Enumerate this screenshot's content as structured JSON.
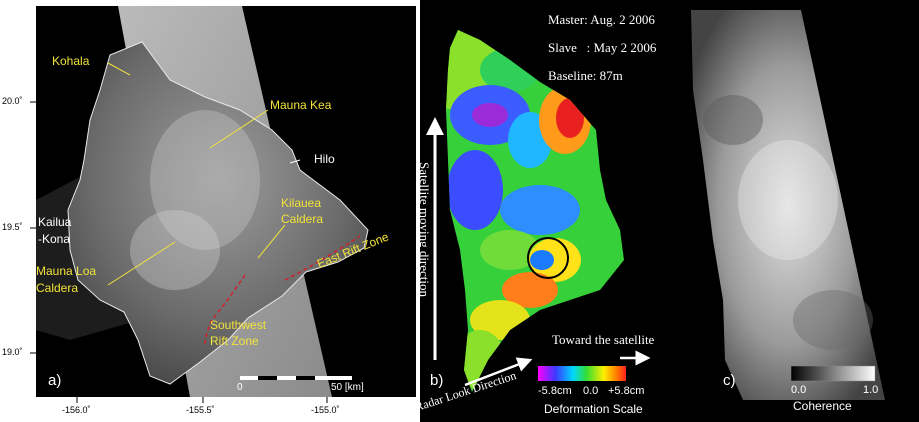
{
  "panel_a": {
    "panel_label": "a)",
    "lat_ticks": [
      "20.0˚",
      "19.5˚",
      "19.0˚"
    ],
    "lon_ticks": [
      "-156.0˚",
      "-155.5˚",
      "-155.0˚"
    ],
    "labels": {
      "kohala": "Kohala",
      "mauna_kea": "Mauna Kea",
      "hilo": "Hilo",
      "kailua": "Kailua",
      "kona": "-Kona",
      "kilauea_1": "Kilauea",
      "kilauea_2": "Caldera",
      "mauna_loa_1": "Mauna Loa",
      "mauna_loa_2": "Caldera",
      "east_rift": "East Rift Zone",
      "sw_rift_1": "Southwest",
      "sw_rift_2": "Rift Zone"
    },
    "scale_bar": {
      "min_label": "0",
      "max_label": "50 [km]"
    }
  },
  "panel_b": {
    "panel_label": "b)",
    "master": "Master: Aug. 2 2006",
    "slave": "Slave   : May 2 2006",
    "baseline": "Baseline: 87m",
    "satellite_direction": "Satellite  moving direction",
    "radar_look": "Radar Look Direction",
    "toward": "Toward the satellite",
    "scale_min": "-5.8cm",
    "scale_mid": "0.0",
    "scale_max": "+5.8cm",
    "scale_title": "Deformation Scale"
  },
  "panel_c": {
    "panel_label": "c)",
    "scale_min": "0.0",
    "scale_max": "1.0",
    "scale_title": "Coherence"
  },
  "colors": {
    "panel_bg": "#000000",
    "label_yellow": "#f2e33a",
    "rift_red": "#d0202a"
  }
}
